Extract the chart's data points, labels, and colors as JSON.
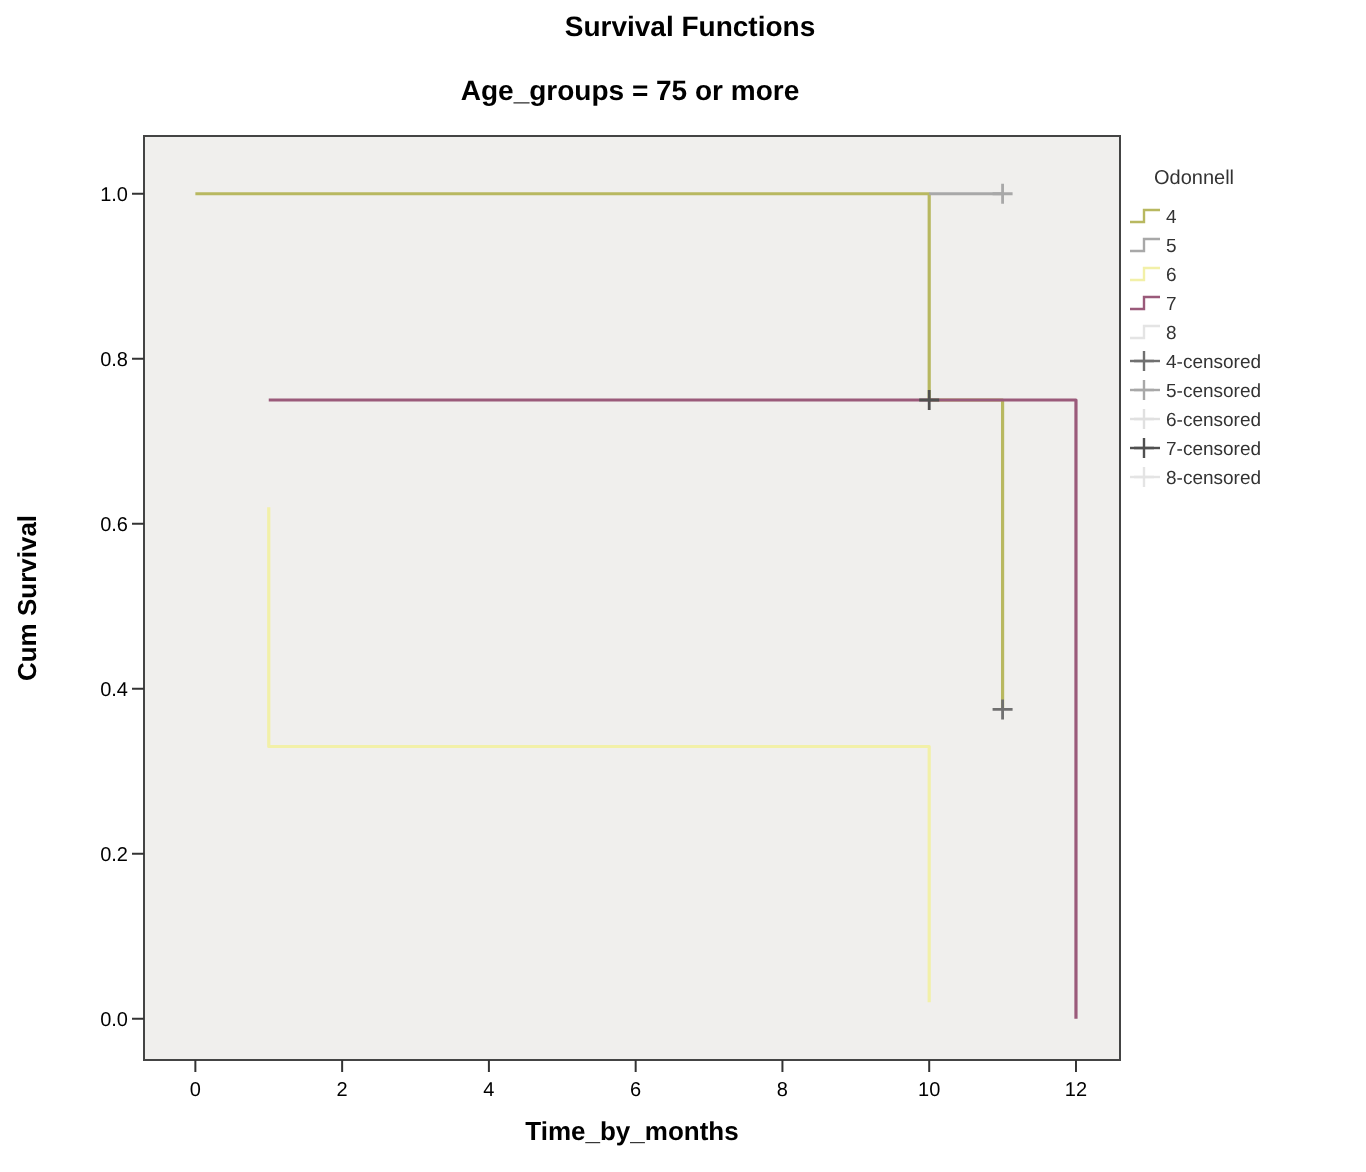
{
  "chart_data": {
    "type": "line",
    "title": "Survival Functions",
    "subtitle": "Age_groups = 75 or more",
    "xlabel": "Time_by_months",
    "ylabel": "Cum Survival",
    "legend_title": "Odonnell",
    "xlim": [
      -0.7,
      12.6
    ],
    "xticks": [
      0,
      2,
      4,
      6,
      8,
      10,
      12
    ],
    "ylim": [
      -0.05,
      1.07
    ],
    "yticks": [
      {
        "value": 0,
        "label": "0.0"
      },
      {
        "value": 0.2,
        "label": "0.2"
      },
      {
        "value": 0.4,
        "label": "0.4"
      },
      {
        "value": 0.6,
        "label": "0.6"
      },
      {
        "value": 0.8,
        "label": "0.8"
      },
      {
        "value": 1,
        "label": "1.0"
      }
    ],
    "grid": false,
    "legend": "right",
    "marker": "none",
    "line_style": "solid",
    "series": [
      {
        "name": "4",
        "color": "#b8b860",
        "x": [
          0,
          10,
          10,
          11,
          11
        ],
        "values": [
          1,
          1,
          0.75,
          0.75,
          0.375
        ]
      },
      {
        "name": "5",
        "color": "#a8a8a8",
        "x": [
          10,
          11
        ],
        "values": [
          1,
          1
        ]
      },
      {
        "name": "6",
        "color": "#f2f0a8",
        "x": [
          1,
          1,
          10,
          10
        ],
        "values": [
          0.62,
          0.33,
          0.33,
          0.02
        ]
      },
      {
        "name": "7",
        "color": "#9a5a7a",
        "x": [
          1,
          12,
          12
        ],
        "values": [
          0.75,
          0.75,
          0
        ]
      },
      {
        "name": "8",
        "color": "#e4e4e4"
      },
      {
        "name": "4-censored",
        "type": "scatter",
        "marker": "cross",
        "color": "#707070",
        "x": [
          11
        ],
        "values": [
          0.375
        ]
      },
      {
        "name": "5-censored",
        "type": "scatter",
        "marker": "cross",
        "color": "#a8a8a8",
        "x": [
          11
        ],
        "values": [
          1
        ]
      },
      {
        "name": "6-censored",
        "type": "scatter",
        "marker": "cross",
        "color": "#e0e0e0"
      },
      {
        "name": "7-censored",
        "type": "scatter",
        "marker": "cross",
        "color": "#505050",
        "x": [
          10
        ],
        "values": [
          0.75
        ]
      },
      {
        "name": "8-censored",
        "type": "scatter",
        "marker": "cross",
        "color": "#e4e4e4"
      }
    ]
  }
}
